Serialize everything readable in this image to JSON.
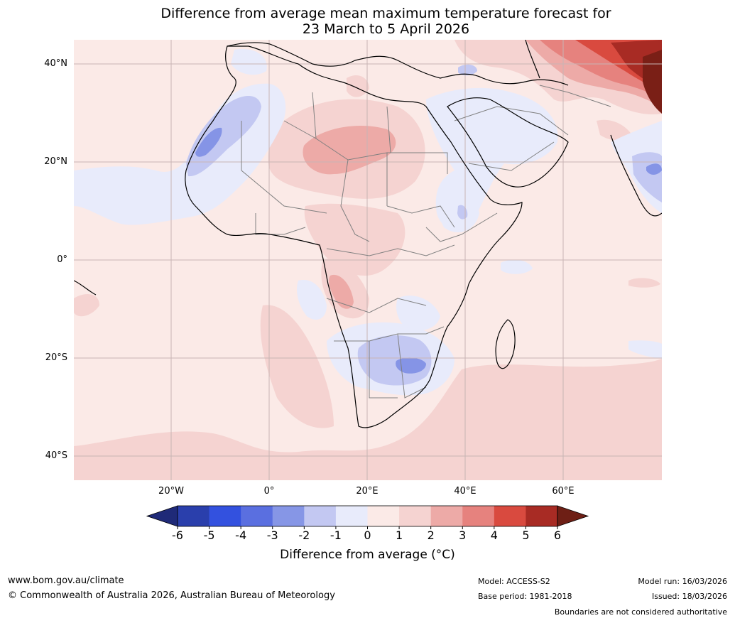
{
  "title": {
    "line1": "Difference from average mean maximum temperature forecast for",
    "line2": "23 March to 5 April 2026"
  },
  "map": {
    "region": "Africa",
    "lat_labels": [
      "40°N",
      "20°N",
      "0°",
      "20°S",
      "40°S"
    ],
    "lon_labels": [
      "20°W",
      "0°",
      "20°E",
      "40°E",
      "60°E"
    ],
    "colors": {
      "ocean_base": "#fbeae7",
      "neg1": "#e8ebfb",
      "neg2": "#c3c8f2",
      "neg3": "#8594e6",
      "pos2": "#f5d3d1",
      "pos3": "#edaaa7",
      "pos4": "#e6827e",
      "pos5": "#d94a3f",
      "pos6": "#a82b24",
      "pos7": "#7a1f16",
      "coast": "#000000",
      "border": "#808080",
      "grid": "#c8b4b4"
    }
  },
  "colorbar": {
    "ticks": [
      "-6",
      "-5",
      "-4",
      "-3",
      "-2",
      "-1",
      "0",
      "1",
      "2",
      "3",
      "4",
      "5",
      "6"
    ],
    "colors": [
      "#1f2a78",
      "#2a3fac",
      "#3351df",
      "#5a6fe0",
      "#8696e6",
      "#c3c8f2",
      "#e8ebfb",
      "#fbeae7",
      "#f5d3d1",
      "#edaaa7",
      "#e6827e",
      "#d94a3f",
      "#a82b24",
      "#6e1f15"
    ],
    "label": "Difference from average (°C)"
  },
  "footer": {
    "website": "www.bom.gov.au/climate",
    "copyright": "© Commonwealth of Australia 2026, Australian Bureau of Meteorology",
    "model": "Model: ACCESS-S2",
    "base_period": "Base period: 1981-2018",
    "model_run": "Model run: 16/03/2026",
    "issued": "Issued: 18/03/2026",
    "disclaimer": "Boundaries are not considered authoritative"
  }
}
